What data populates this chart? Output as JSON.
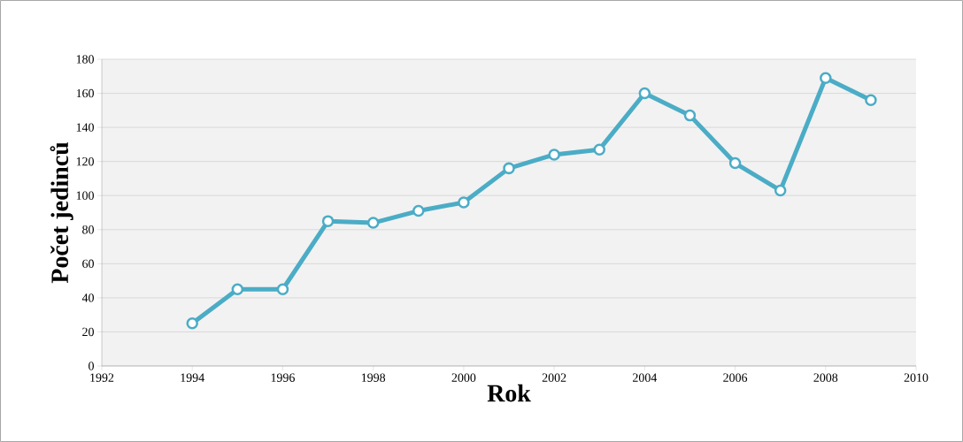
{
  "chart_data": {
    "type": "line",
    "xlabel": "Rok",
    "ylabel": "Počet jedinců",
    "x": [
      1994,
      1995,
      1996,
      1997,
      1998,
      1999,
      2000,
      2001,
      2002,
      2003,
      2004,
      2005,
      2006,
      2007,
      2008,
      2009
    ],
    "series": [
      {
        "color": "#4bacc6",
        "values": [
          25,
          45,
          45,
          85,
          84,
          91,
          96,
          116,
          124,
          127,
          160,
          147,
          119,
          103,
          169,
          156
        ]
      }
    ],
    "xlim": [
      1992,
      2010
    ],
    "xticks": [
      1992,
      1994,
      1996,
      1998,
      2000,
      2002,
      2004,
      2006,
      2008,
      2010
    ],
    "ylim": [
      0,
      180
    ],
    "yticks": [
      0,
      20,
      40,
      60,
      80,
      100,
      120,
      140,
      160,
      180
    ],
    "grid": "y",
    "marker": "circle",
    "line_style": "solid"
  }
}
